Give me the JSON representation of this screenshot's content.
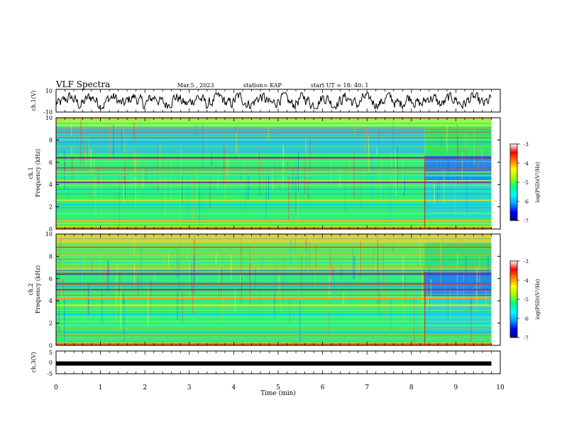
{
  "header": {
    "title": "VLF Spectra",
    "date": "Mar.5 , 2023",
    "station": "station= KAP",
    "start": "start UT = 18: 40: 1"
  },
  "chart_data": [
    {
      "type": "line",
      "name": "ch1-waveform",
      "ylabel": "ch.1(V)",
      "ylim": [
        -10,
        10
      ],
      "yticks": [
        "10",
        "-10"
      ],
      "xlim": [
        0,
        10
      ],
      "data_extent_min": [
        0,
        9.8
      ],
      "trace_color": "#000000"
    },
    {
      "type": "heatmap",
      "name": "ch1-spectrogram",
      "ylabel_line1": "ch.1",
      "ylabel_line2": "Frequency (kHz)",
      "ylim": [
        0,
        10
      ],
      "yticks": [
        "0",
        "2",
        "4",
        "6",
        "8",
        "10"
      ],
      "xlim": [
        0,
        10
      ],
      "data_extent_min": [
        0,
        9.8
      ],
      "change_at_min": 8.3,
      "colorbar": {
        "label": "log(PSD)(V²/Hz)",
        "range": [
          -7,
          -3
        ],
        "ticks": [
          "-3",
          "-4",
          "-5",
          "-6",
          "-7"
        ],
        "colors": [
          "#00007f",
          "#0000ff",
          "#00a0ff",
          "#00ffff",
          "#00ff80",
          "#a0ff00",
          "#ffff00",
          "#ff8000",
          "#ff0000",
          "#ffffff"
        ]
      },
      "bands": [
        {
          "kHz": 0.2,
          "color": "#c0ff00"
        },
        {
          "kHz": 0.5,
          "color": "#ffcc00"
        },
        {
          "kHz": 0.8,
          "color": "#ff8800"
        },
        {
          "kHz": 1.4,
          "color": "#55ff55"
        },
        {
          "kHz": 2.2,
          "color": "#00ccff"
        },
        {
          "kHz": 2.6,
          "color": "#ffee00"
        },
        {
          "kHz": 3.4,
          "color": "#00ffbb"
        },
        {
          "kHz": 4.2,
          "color": "#663399"
        },
        {
          "kHz": 4.8,
          "color": "#00ffff"
        },
        {
          "kHz": 5.1,
          "color": "#66ff66"
        },
        {
          "kHz": 5.5,
          "color": "#cc3333"
        },
        {
          "kHz": 6.4,
          "color": "#333399"
        }
      ]
    },
    {
      "type": "heatmap",
      "name": "ch2-spectrogram",
      "ylabel_line1": "ch.2",
      "ylabel_line2": "Frequency (kHz)",
      "ylim": [
        0,
        10
      ],
      "yticks": [
        "0",
        "2",
        "4",
        "6",
        "8",
        "10"
      ],
      "xlim": [
        0,
        10
      ],
      "data_extent_min": [
        0,
        9.8
      ],
      "change_at_min": 8.3,
      "colorbar": {
        "label": "log(PSD)(V²/Hz)",
        "range": [
          -7,
          -3
        ],
        "ticks": [
          "-3",
          "-4",
          "-5",
          "-6",
          "-7"
        ],
        "colors": [
          "#00007f",
          "#0000ff",
          "#00a0ff",
          "#00ffff",
          "#00ff80",
          "#a0ff00",
          "#ffff00",
          "#ff8000",
          "#ff0000",
          "#ffffff"
        ]
      },
      "bands": [
        {
          "kHz": 0.3,
          "color": "#ffcc00"
        },
        {
          "kHz": 0.9,
          "color": "#ff8800"
        },
        {
          "kHz": 1.8,
          "color": "#55ff55"
        },
        {
          "kHz": 2.8,
          "color": "#00ccff"
        },
        {
          "kHz": 3.6,
          "color": "#ffee00"
        },
        {
          "kHz": 4.2,
          "color": "#ff9900"
        },
        {
          "kHz": 5.0,
          "color": "#663399"
        },
        {
          "kHz": 5.5,
          "color": "#cc3333"
        },
        {
          "kHz": 6.4,
          "color": "#333399"
        },
        {
          "kHz": 8.8,
          "color": "#ff4400"
        },
        {
          "kHz": 9.6,
          "color": "#ffaa00"
        }
      ]
    },
    {
      "type": "line",
      "name": "ch3-level",
      "ylabel": "ch.3(V)",
      "ylim": [
        -5,
        5
      ],
      "yticks": [
        "5",
        "0",
        "-5"
      ],
      "y_value": -0.5,
      "xlim": [
        0,
        10
      ],
      "data_extent_min": [
        0,
        9.8
      ],
      "xlabel": "Time (min)",
      "xticks": [
        "0",
        "1",
        "2",
        "3",
        "4",
        "5",
        "6",
        "7",
        "8",
        "9",
        "10"
      ]
    }
  ]
}
